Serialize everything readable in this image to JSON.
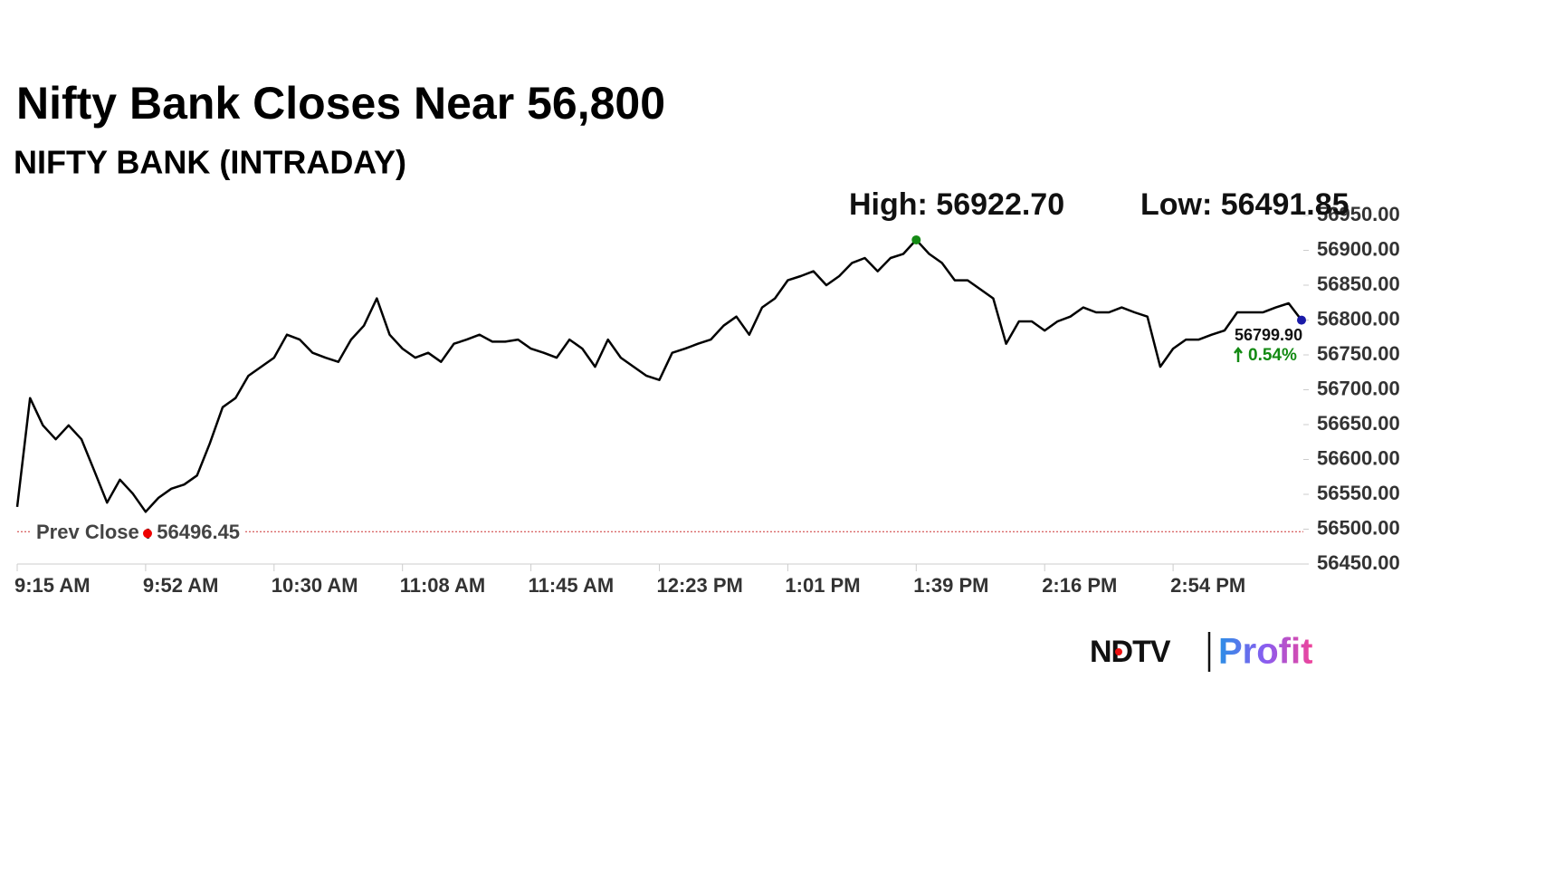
{
  "chart_data": {
    "type": "line",
    "title": "Nifty Bank Closes Near 56,800",
    "subtitle": "NIFTY BANK (INTRADAY)",
    "high": "High: 56922.70",
    "low": "Low: 56491.85",
    "categories": [
      "9:15 AM",
      null,
      null,
      null,
      null,
      null,
      null,
      null,
      null,
      null,
      "9:52 AM",
      null,
      null,
      null,
      null,
      null,
      null,
      null,
      null,
      null,
      "10:30 AM",
      null,
      null,
      null,
      null,
      null,
      null,
      null,
      null,
      null,
      "11:08 AM",
      null,
      null,
      null,
      null,
      null,
      null,
      null,
      null,
      null,
      "11:45 AM",
      null,
      null,
      null,
      null,
      null,
      null,
      null,
      null,
      null,
      "12:23 PM",
      null,
      null,
      null,
      null,
      null,
      null,
      null,
      null,
      null,
      "1:01 PM",
      null,
      null,
      null,
      null,
      null,
      null,
      null,
      null,
      null,
      "1:39 PM",
      null,
      null,
      null,
      null,
      null,
      null,
      null,
      null,
      null,
      "2:16 PM",
      null,
      null,
      null,
      null,
      null,
      null,
      null,
      null,
      null,
      "2:54 PM",
      null,
      null,
      null,
      null,
      null,
      null,
      null,
      null,
      null,
      null
    ],
    "values": [
      56532,
      56688,
      56649,
      56629,
      56649,
      56629,
      56584,
      56538,
      56571,
      56551,
      56525,
      56545,
      56558,
      56564,
      56577,
      56623,
      56675,
      56688,
      56720,
      56733,
      56746,
      56779,
      56772,
      56753,
      56746,
      56740,
      56772,
      56792,
      56831,
      56779,
      56759,
      56746,
      56753,
      56740,
      56766,
      56772,
      56779,
      56769,
      56769,
      56772,
      56759,
      56753,
      56746,
      56772,
      56759,
      56733,
      56772,
      56746,
      56733,
      56720,
      56714,
      56753,
      56759,
      56766,
      56772,
      56792,
      56805,
      56779,
      56818,
      56831,
      56857,
      56863,
      56870,
      56850,
      56863,
      56882,
      56889,
      56870,
      56889,
      56895,
      56915,
      56895,
      56882,
      56857,
      56857,
      56844,
      56831,
      56766,
      56798,
      56798,
      56785,
      56798,
      56805,
      56818,
      56811,
      56811,
      56818,
      56811,
      56805,
      56733,
      56759,
      56772,
      56772,
      56779,
      56785,
      56811,
      56811,
      56811,
      56818,
      56824,
      56799.9
    ],
    "color": "#000000",
    "last_label": "56799.90",
    "change": "0.54%",
    "prev_close": {
      "value": 56496.45,
      "label": "Prev Close : 56496.45"
    },
    "ylim": [
      56450,
      56950
    ],
    "yticks": [
      {
        "value": 56450,
        "label": "56450.00"
      },
      {
        "value": 56500,
        "label": "56500.00"
      },
      {
        "value": 56550,
        "label": "56550.00"
      },
      {
        "value": 56600,
        "label": "56600.00"
      },
      {
        "value": 56650,
        "label": "56650.00"
      },
      {
        "value": 56700,
        "label": "56700.00"
      },
      {
        "value": 56750,
        "label": "56750.00"
      },
      {
        "value": 56800,
        "label": "56800.00"
      },
      {
        "value": 56850,
        "label": "56850.00"
      },
      {
        "value": 56900,
        "label": "56900.00"
      },
      {
        "value": 56950,
        "label": "56950.00"
      }
    ],
    "logo": {
      "left": "NDTV",
      "right": "Profit"
    }
  }
}
